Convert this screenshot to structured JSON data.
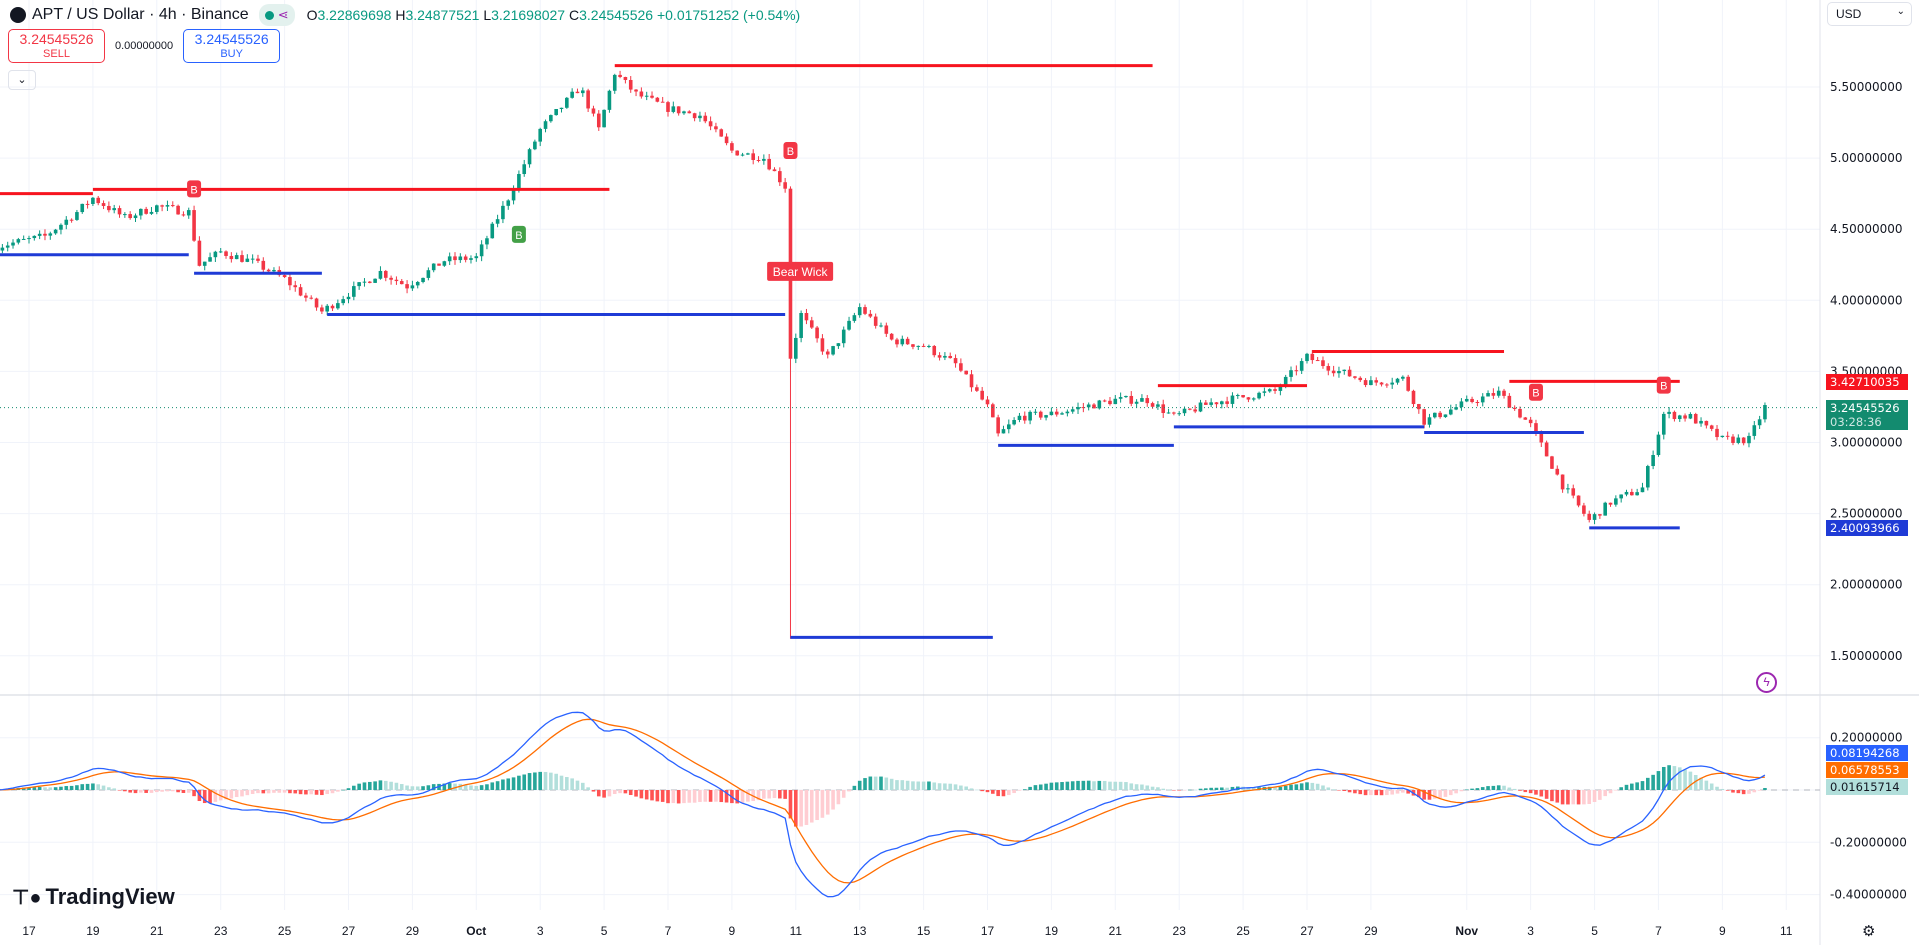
{
  "header": {
    "symbol": "APT / US Dollar · 4h · Binance",
    "open_label": "O",
    "open": "3.22869698",
    "high_label": "H",
    "high": "3.24877521",
    "low_label": "L",
    "low": "3.21698027",
    "close_label": "C",
    "close": "3.24545526",
    "change": "+0.01751252 (+0.54%)"
  },
  "trade": {
    "sell_price": "3.24545526",
    "sell_label": "SELL",
    "spread": "0.00000000",
    "buy_price": "3.24545526",
    "buy_label": "BUY",
    "collapse": "⌄"
  },
  "currency": {
    "label": "USD",
    "chevron": "⌄"
  },
  "price_axis": {
    "ticks": [
      "5.50000000",
      "5.00000000",
      "4.50000000",
      "4.00000000",
      "3.50000000",
      "3.00000000",
      "2.50000000",
      "2.00000000",
      "1.50000000"
    ],
    "values": [
      5.5,
      5.0,
      4.5,
      4.0,
      3.5,
      3.0,
      2.5,
      2.0,
      1.5
    ]
  },
  "macd_axis": {
    "ticks": [
      "0.20000000",
      "-0.20000000",
      "-0.40000000"
    ],
    "values": [
      0.2,
      -0.2,
      -0.4
    ]
  },
  "time_axis": {
    "labels": [
      "17",
      "19",
      "21",
      "23",
      "25",
      "27",
      "29",
      "Oct",
      "3",
      "5",
      "7",
      "9",
      "11",
      "13",
      "15",
      "17",
      "19",
      "21",
      "23",
      "25",
      "27",
      "29",
      "Nov",
      "3",
      "5",
      "7",
      "9",
      "11"
    ],
    "dates": [
      "09-17",
      "09-19",
      "09-21",
      "09-23",
      "09-25",
      "09-27",
      "09-29",
      "10-01",
      "10-03",
      "10-05",
      "10-07",
      "10-09",
      "10-11",
      "10-13",
      "10-15",
      "10-17",
      "10-19",
      "10-21",
      "10-23",
      "10-25",
      "10-27",
      "10-29",
      "11-01",
      "11-03",
      "11-05",
      "11-07",
      "11-09",
      "11-11"
    ]
  },
  "tags": {
    "resistance": "3.42710035",
    "last_price": "3.24545526",
    "countdown": "03:28:36",
    "support": "2.40093966",
    "macd": "0.08194268",
    "signal": "0.06578553",
    "histogram": "0.01615714"
  },
  "colors": {
    "up": "#089981",
    "down": "#f23645",
    "resistance": "#f7141f",
    "support": "#1f3bd6",
    "macd": "#2962ff",
    "signal": "#ff6d00",
    "hist_up": "#26a69a",
    "hist_up_light": "#b2dfdb",
    "hist_down": "#ff5252",
    "hist_down_light": "#ffcdd2",
    "last": "#138b6f"
  },
  "chart_data": {
    "type": "candlestick",
    "interval": "4h",
    "ylim": [
      1.5,
      5.6
    ],
    "close_path": [
      [
        "09-16 00",
        4.38
      ],
      [
        "09-17 12",
        4.45
      ],
      [
        "09-18 12",
        4.62
      ],
      [
        "09-19 00",
        4.72
      ],
      [
        "09-20 00",
        4.58
      ],
      [
        "09-21 00",
        4.66
      ],
      [
        "09-22 00",
        4.62
      ],
      [
        "09-22 08",
        4.25
      ],
      [
        "09-23 00",
        4.34
      ],
      [
        "09-24 00",
        4.27
      ],
      [
        "09-25 00",
        4.15
      ],
      [
        "09-26 04",
        3.92
      ],
      [
        "09-27 00",
        4.05
      ],
      [
        "09-28 00",
        4.2
      ],
      [
        "09-28 20",
        4.1
      ],
      [
        "09-30 00",
        4.28
      ],
      [
        "10-01 00",
        4.3
      ],
      [
        "10-02 00",
        4.72
      ],
      [
        "10-03 00",
        5.2
      ],
      [
        "10-04 06",
        5.5
      ],
      [
        "10-04 20",
        5.2
      ],
      [
        "10-05 08",
        5.6
      ],
      [
        "10-06 00",
        5.45
      ],
      [
        "10-07 00",
        5.35
      ],
      [
        "10-08 00",
        5.3
      ],
      [
        "10-09 00",
        5.05
      ],
      [
        "10-10 00",
        5.0
      ],
      [
        "10-10 16",
        4.8
      ],
      [
        "10-10 20",
        3.6
      ],
      [
        "10-11 04",
        3.9
      ],
      [
        "10-12 00",
        3.6
      ],
      [
        "10-13 00",
        3.95
      ],
      [
        "10-14 00",
        3.72
      ],
      [
        "10-15 00",
        3.68
      ],
      [
        "10-16 00",
        3.55
      ],
      [
        "10-17 00",
        3.25
      ],
      [
        "10-17 08",
        3.05
      ],
      [
        "10-18 00",
        3.18
      ],
      [
        "10-19 00",
        3.2
      ],
      [
        "10-20 00",
        3.25
      ],
      [
        "10-21 00",
        3.3
      ],
      [
        "10-22 00",
        3.3
      ],
      [
        "10-22 20",
        3.18
      ],
      [
        "10-24 00",
        3.28
      ],
      [
        "10-25 00",
        3.32
      ],
      [
        "10-26 00",
        3.36
      ],
      [
        "10-27 00",
        3.6
      ],
      [
        "10-28 00",
        3.5
      ],
      [
        "10-29 00",
        3.42
      ],
      [
        "10-30 00",
        3.45
      ],
      [
        "10-30 16",
        3.15
      ],
      [
        "11-01 00",
        3.28
      ],
      [
        "11-02 00",
        3.35
      ],
      [
        "11-03 00",
        3.12
      ],
      [
        "11-04 00",
        2.7
      ],
      [
        "11-04 20",
        2.45
      ],
      [
        "11-05 12",
        2.58
      ],
      [
        "11-06 12",
        2.68
      ],
      [
        "11-07 04",
        3.2
      ],
      [
        "11-08 00",
        3.18
      ],
      [
        "11-09 00",
        3.02
      ],
      [
        "11-09 20",
        3.02
      ],
      [
        "11-10 08",
        3.25
      ]
    ],
    "crash_low": {
      "time": "10-10 20",
      "price": 1.62
    },
    "resistance_levels": [
      {
        "from": "09-16 02",
        "to": "09-19 00",
        "price": 4.75
      },
      {
        "from": "09-19 00",
        "to": "10-05 04",
        "price": 4.78
      },
      {
        "from": "10-05 08",
        "to": "10-22 04",
        "price": 5.65
      },
      {
        "from": "10-22 08",
        "to": "10-27 00",
        "price": 3.4
      },
      {
        "from": "10-27 04",
        "to": "11-02 04",
        "price": 3.64
      },
      {
        "from": "11-02 08",
        "to": "11-07 16",
        "price": 3.43
      }
    ],
    "support_levels": [
      {
        "from": "09-16 02",
        "to": "09-22 00",
        "price": 4.32
      },
      {
        "from": "09-22 04",
        "to": "09-26 04",
        "price": 4.19
      },
      {
        "from": "09-26 08",
        "to": "10-10 16",
        "price": 3.9
      },
      {
        "from": "10-10 20",
        "to": "10-17 04",
        "price": 1.63
      },
      {
        "from": "10-17 08",
        "to": "10-22 20",
        "price": 2.98
      },
      {
        "from": "10-22 20",
        "to": "10-30 16",
        "price": 3.11
      },
      {
        "from": "10-30 16",
        "to": "11-04 16",
        "price": 3.07
      },
      {
        "from": "11-04 20",
        "to": "11-07 16",
        "price": 2.4
      }
    ],
    "signals": [
      {
        "time": "09-22 04",
        "price": 4.78,
        "label": "B",
        "type": "sell"
      },
      {
        "time": "10-02 08",
        "price": 4.46,
        "label": "B",
        "type": "buy"
      },
      {
        "time": "10-10 20",
        "price": 5.05,
        "label": "B",
        "type": "sell"
      },
      {
        "time": "11-03 04",
        "price": 3.35,
        "label": "B",
        "type": "sell"
      },
      {
        "time": "11-07 04",
        "price": 3.4,
        "label": "B",
        "type": "sell"
      }
    ],
    "annotation": {
      "time": "10-11 04",
      "price": 4.2,
      "text": "Bear Wick"
    },
    "indicator": "MACD"
  },
  "footer": {
    "logo": "TradingView"
  }
}
